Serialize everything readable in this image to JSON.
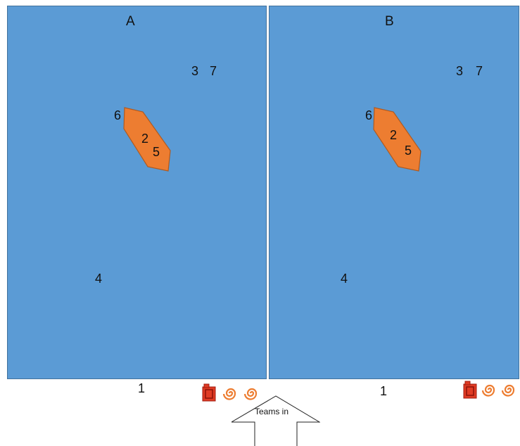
{
  "fields": [
    {
      "title": "A",
      "labels": {
        "n2": "2",
        "n3": "3",
        "n4": "4",
        "n5": "5",
        "n6": "6",
        "n7": "7"
      },
      "below": "1"
    },
    {
      "title": "B",
      "labels": {
        "n2": "2",
        "n3": "3",
        "n4": "4",
        "n5": "5",
        "n6": "6",
        "n7": "7"
      },
      "below": "1"
    }
  ],
  "entrance": {
    "label": "Teams in"
  },
  "colors": {
    "field": "#5b9bd5",
    "obstacle": "#ed7d31",
    "fuel": "#e03b24"
  },
  "icons": [
    "fuel-can-icon",
    "swirl-icon",
    "swirl-icon"
  ]
}
